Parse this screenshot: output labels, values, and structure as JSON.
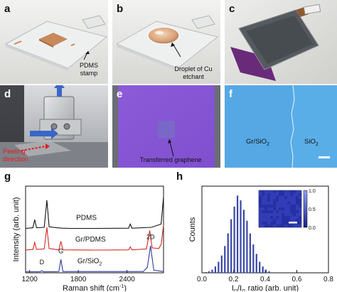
{
  "panels": {
    "a": {
      "label": "a",
      "annotation": "PDMS\nstamp"
    },
    "b": {
      "label": "b",
      "annotation": "Droplet of Cu\netchant"
    },
    "c": {
      "label": "c"
    },
    "d": {
      "label": "d",
      "annotation": "Peeling\ndirection"
    },
    "e": {
      "label": "e",
      "annotation": "Transferred graphene"
    },
    "f": {
      "label": "f",
      "left_text": "Gr/SiO",
      "left_sub": "2",
      "right_text": "SiO",
      "right_sub": "2"
    },
    "g": {
      "label": "g"
    },
    "h": {
      "label": "h"
    }
  },
  "chart_data": [
    {
      "type": "line",
      "panel": "g",
      "xlabel": "Raman shift (cm",
      "xlabel_sup": "-1",
      "xlabel_end": ")",
      "ylabel": "Intensity (arb. unit)",
      "xlim": [
        1150,
        2850
      ],
      "xticks": [
        "1200",
        "1800",
        "2400"
      ],
      "xtick_values": [
        1200,
        1800,
        2400
      ],
      "series": [
        {
          "name": "PDMS",
          "color": "#111111",
          "offset": 2.0,
          "x": [
            1150,
            1240,
            1262,
            1285,
            1380,
            1412,
            1440,
            1540,
            1600,
            1700,
            2000,
            2420,
            2440,
            2460,
            2700,
            2820,
            2850
          ],
          "y": [
            0.05,
            0.08,
            0.45,
            0.08,
            0.1,
            1.35,
            0.12,
            0.08,
            0.06,
            0.05,
            0.05,
            0.06,
            0.25,
            0.06,
            0.1,
            0.25,
            1.5
          ]
        },
        {
          "name": "Gr/PDMS",
          "color": "#d0281e",
          "offset": 1.0,
          "x": [
            1150,
            1240,
            1262,
            1285,
            1380,
            1412,
            1440,
            1560,
            1585,
            1610,
            2000,
            2420,
            2440,
            2460,
            2640,
            2680,
            2710,
            2790,
            2820,
            2850
          ],
          "y": [
            0.05,
            0.08,
            0.4,
            0.08,
            0.1,
            1.1,
            0.12,
            0.06,
            0.45,
            0.06,
            0.05,
            0.06,
            0.2,
            0.06,
            0.1,
            0.95,
            0.15,
            0.12,
            0.3,
            1.2
          ]
        },
        {
          "name": "Gr/SiO",
          "name_sub": "2",
          "color": "#2a3a9a",
          "offset": 0.0,
          "x": [
            1150,
            1330,
            1350,
            1370,
            1560,
            1585,
            1610,
            2600,
            2650,
            2690,
            2730,
            2850
          ],
          "y": [
            0.05,
            0.05,
            0.1,
            0.05,
            0.06,
            0.62,
            0.06,
            0.06,
            0.25,
            1.25,
            0.12,
            0.06
          ]
        }
      ],
      "peak_labels": [
        {
          "text": "D",
          "x": 1350
        },
        {
          "text": "G",
          "x": 1585
        },
        {
          "text": "2D",
          "x": 2690
        }
      ]
    },
    {
      "type": "bar",
      "panel": "h",
      "xlabel_I1": "I",
      "xlabel_sub1": "D",
      "xlabel_I2": "/I",
      "xlabel_sub2": "G",
      "xlabel_end": " ratio (arb. unit)",
      "ylabel": "Counts",
      "xlim": [
        0.0,
        0.8
      ],
      "xticks": [
        "0.0",
        "0.2",
        "0.4",
        "0.6",
        "0.8"
      ],
      "xtick_values": [
        0.0,
        0.2,
        0.4,
        0.6,
        0.8
      ],
      "bin_width": 0.01,
      "bin_starts": [
        0.02,
        0.04,
        0.06,
        0.08,
        0.1,
        0.12,
        0.14,
        0.16,
        0.18,
        0.2,
        0.22,
        0.24,
        0.26,
        0.28,
        0.3,
        0.32,
        0.34,
        0.36,
        0.38,
        0.4,
        0.42
      ],
      "counts": [
        1,
        2,
        4,
        8,
        14,
        22,
        34,
        50,
        68,
        84,
        98,
        92,
        80,
        66,
        50,
        36,
        24,
        14,
        8,
        4,
        2
      ],
      "ymax": 110,
      "inset": {
        "type": "heatmap",
        "colorbar_ticks": [
          "1.0",
          "0.5",
          "0.0"
        ],
        "colorbar_values": [
          1.0,
          0.5,
          0.0
        ]
      }
    }
  ]
}
